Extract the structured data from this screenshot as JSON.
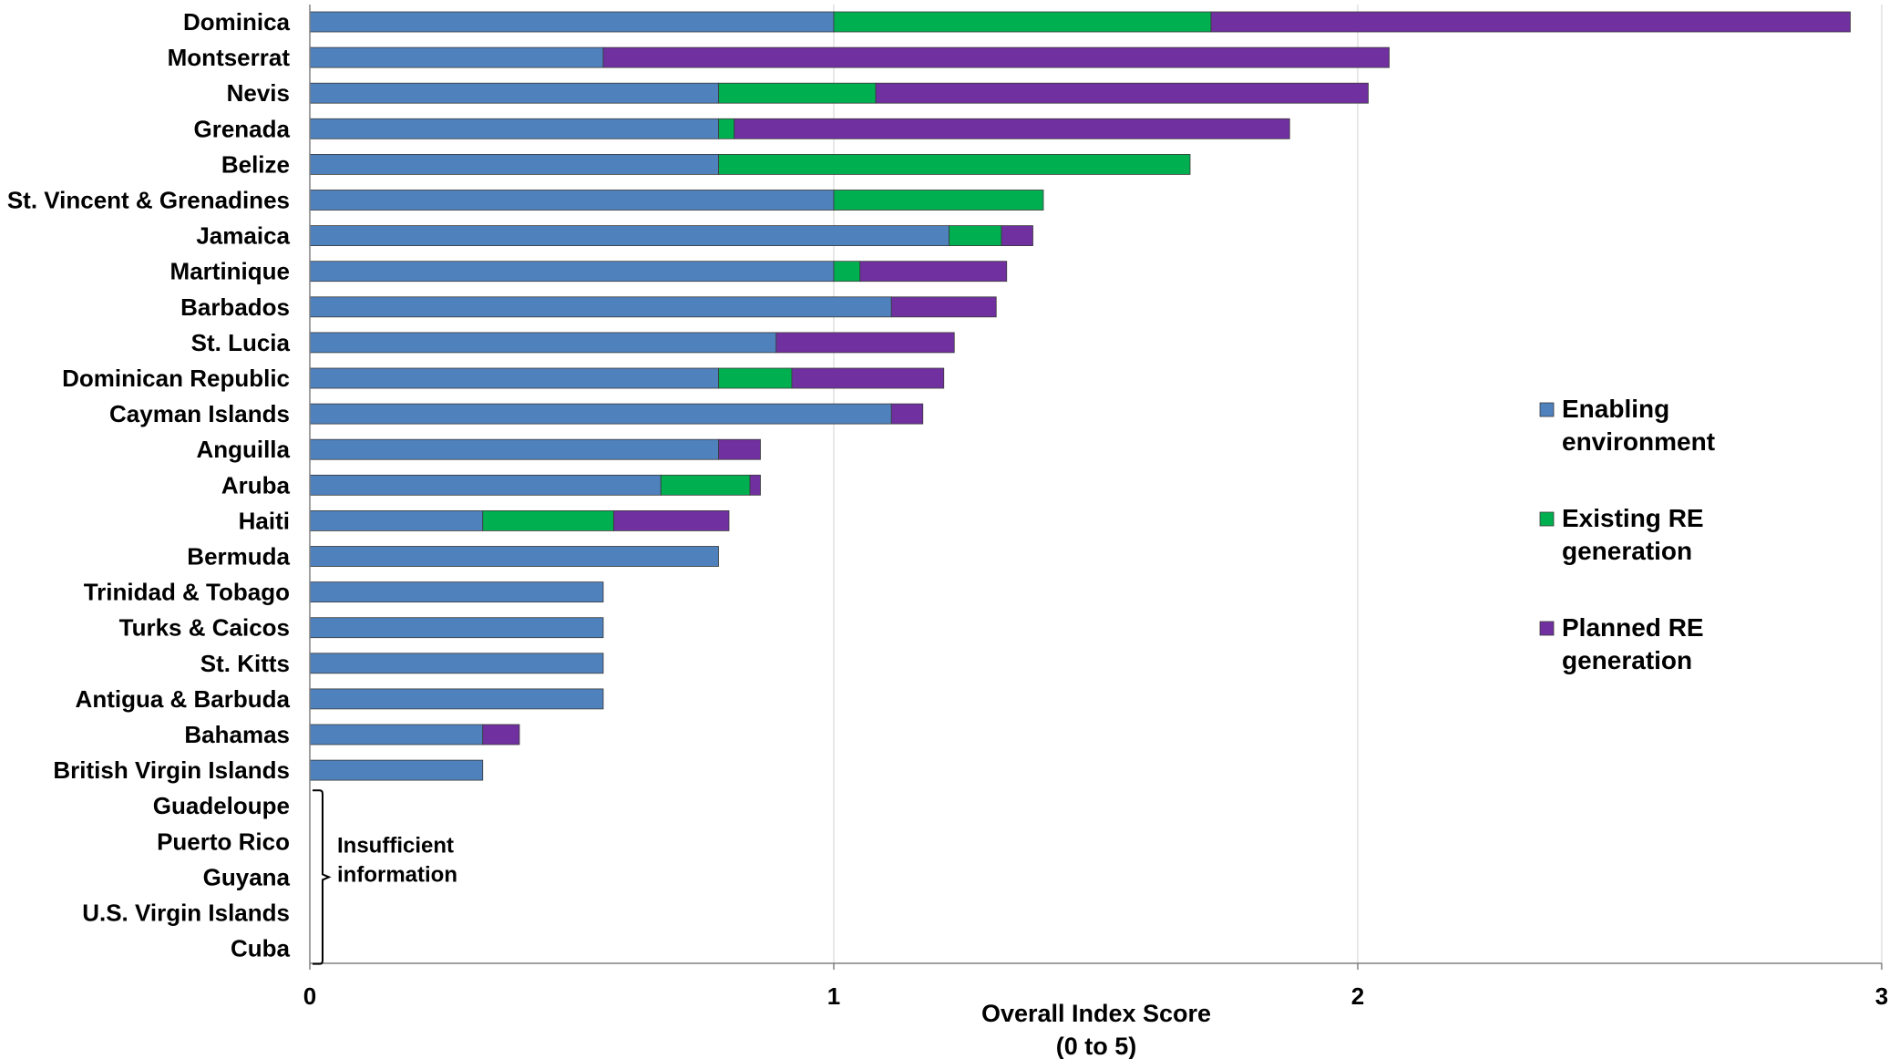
{
  "chart_data": {
    "type": "bar",
    "orientation": "horizontal",
    "stacked": true,
    "title": "",
    "xlabel": "Overall Index Score\n(0 to 5)",
    "ylabel": "",
    "xlim": [
      0,
      3
    ],
    "xticks": [
      "0",
      "1",
      "2",
      "3"
    ],
    "grid": true,
    "legend_position": "right",
    "categories": [
      "Dominica",
      "Montserrat",
      "Nevis",
      "Grenada",
      "Belize",
      "St. Vincent & Grenadines",
      "Jamaica",
      "Martinique",
      "Barbados",
      "St. Lucia",
      "Dominican Republic",
      "Cayman Islands",
      "Anguilla",
      "Aruba",
      "Haiti",
      "Bermuda",
      "Trinidad & Tobago",
      "Turks & Caicos",
      "St. Kitts",
      "Antigua & Barbuda",
      "Bahamas",
      "British Virgin Islands",
      "Guadeloupe",
      "Puerto Rico",
      "Guyana",
      "U.S. Virgin Islands",
      "Cuba"
    ],
    "series": [
      {
        "name": "Enabling\nenvironment",
        "color": "#4f81bd",
        "values": [
          1.0,
          0.56,
          0.78,
          0.78,
          0.78,
          1.0,
          1.22,
          1.0,
          1.11,
          0.89,
          0.78,
          1.11,
          0.78,
          0.67,
          0.33,
          0.78,
          0.56,
          0.56,
          0.56,
          0.56,
          0.33,
          0.33,
          null,
          null,
          null,
          null,
          null
        ]
      },
      {
        "name": "Existing RE\ngeneration",
        "color": "#00b050",
        "values": [
          0.72,
          0,
          0.3,
          0.03,
          0.9,
          0.4,
          0.1,
          0.05,
          0,
          0,
          0.14,
          0,
          0,
          0.17,
          0.25,
          0,
          0,
          0,
          0,
          0,
          0,
          0,
          null,
          null,
          null,
          null,
          null
        ]
      },
      {
        "name": "Planned RE\ngeneration",
        "color": "#7030a0",
        "values": [
          1.22,
          1.5,
          0.94,
          1.06,
          0,
          0,
          0.06,
          0.28,
          0.2,
          0.34,
          0.29,
          0.06,
          0.08,
          0.02,
          0.22,
          0,
          0,
          0,
          0,
          0,
          0.07,
          0,
          null,
          null,
          null,
          null,
          null
        ]
      }
    ],
    "annotation": "Insufficient\ninformation"
  }
}
